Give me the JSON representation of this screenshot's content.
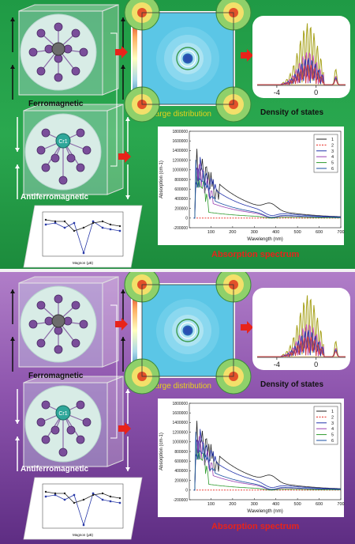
{
  "panels": [
    {
      "id": "top",
      "ferro_label": "Ferromagnetic",
      "antiferro_label": "Antiferromagnetic",
      "charge_label": "Charge distribution",
      "dos_label": "Density of states",
      "absorption_label": "Absorption spectrum"
    },
    {
      "id": "bottom",
      "ferro_label": "Ferromagnetic",
      "antiferro_label": "Antiferromagnetic",
      "charge_label": "Charge distribution",
      "dos_label": "Density of states",
      "absorption_label": "Absorption spectrum"
    }
  ],
  "atom_label": "Cr1",
  "colors": {
    "arrow": "#e8231a",
    "absorption_label": "#e8231a",
    "charge_label": "#e8d21a",
    "top_bg": "#27a34c",
    "bottom_bg": "#8d54ad"
  },
  "dos_chart": {
    "type": "line",
    "xticks": [
      "-4",
      "0"
    ],
    "xlim": [
      -6,
      3
    ]
  },
  "absorption_chart": {
    "type": "line",
    "xlabel": "Wavelength (nm)",
    "ylabel": "Absorption (cm-1)",
    "xticks": [
      "100",
      "200",
      "300",
      "400",
      "500",
      "600",
      "700"
    ],
    "yticks": [
      "1800000",
      "1600000",
      "1400000",
      "1200000",
      "1000000",
      "800000",
      "600000",
      "400000",
      "200000",
      "0",
      "-200000"
    ],
    "xlim": [
      0,
      700
    ],
    "ylim": [
      -200000,
      1800000
    ],
    "legend": [
      "1",
      "2",
      "3",
      "4",
      "5",
      "6"
    ],
    "legend_placement": "top-right"
  },
  "inset_chart": {
    "type": "line",
    "xlabel": "Magnon (μB)"
  }
}
